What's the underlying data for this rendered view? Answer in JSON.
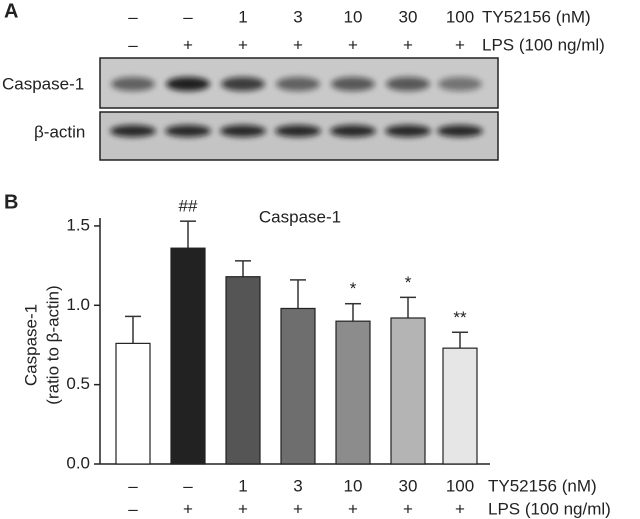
{
  "panel_a": {
    "label": "A",
    "rows": [
      {
        "name": "TY52156 (nM)",
        "labels": [
          "–",
          "–",
          "1",
          "3",
          "10",
          "30",
          "100"
        ]
      },
      {
        "name": "LPS (100 ng/ml)",
        "labels": [
          "–",
          "+",
          "+",
          "+",
          "+",
          "+",
          "+"
        ]
      }
    ],
    "blots": [
      "Caspase-1",
      "β-actin"
    ]
  },
  "chart_data": {
    "type": "bar",
    "label": "B",
    "title": "Caspase-1",
    "ylabel": [
      "Caspase-1",
      "(ratio to β-actin)"
    ],
    "category_rows": [
      {
        "name": "TY52156 (nM)",
        "labels": [
          "–",
          "–",
          "1",
          "3",
          "10",
          "30",
          "100"
        ]
      },
      {
        "name": "LPS (100 ng/ml)",
        "labels": [
          "–",
          "+",
          "+",
          "+",
          "+",
          "+",
          "+"
        ]
      }
    ],
    "values": [
      0.76,
      1.36,
      1.18,
      0.98,
      0.9,
      0.92,
      0.73
    ],
    "errors": [
      0.17,
      0.17,
      0.1,
      0.18,
      0.11,
      0.13,
      0.1
    ],
    "annotations": [
      null,
      "##",
      null,
      null,
      "*",
      "*",
      "**"
    ],
    "colors": [
      "#ffffff",
      "#222222",
      "#555555",
      "#6e6e6e",
      "#8c8c8c",
      "#b4b4b4",
      "#e6e6e6"
    ],
    "ylim": [
      0,
      1.55
    ],
    "yticks": [
      {
        "value": 0,
        "label": "0.0"
      },
      {
        "value": 0.5,
        "label": "0.5"
      },
      {
        "value": 1,
        "label": "1.0"
      },
      {
        "value": 1.5,
        "label": "1.5"
      }
    ]
  }
}
